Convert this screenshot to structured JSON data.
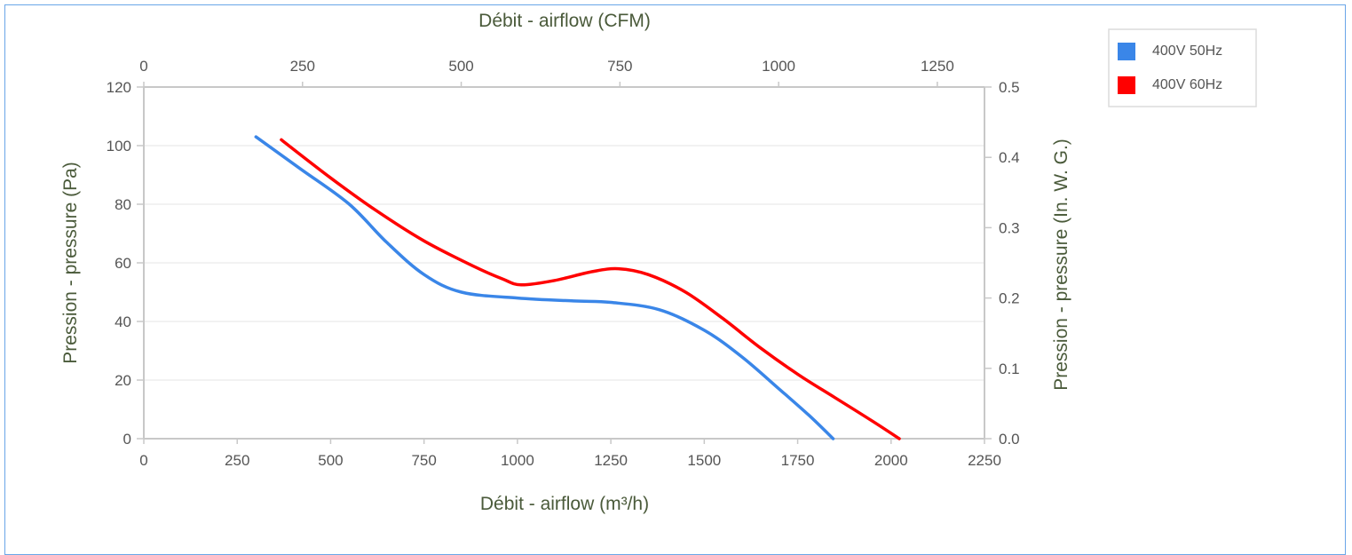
{
  "chart_data": {
    "type": "line",
    "title": "",
    "x_bottom": {
      "label": "Débit - airflow (m³/h)",
      "range": [
        0,
        2250
      ],
      "ticks": [
        0,
        250,
        500,
        750,
        1000,
        1250,
        1500,
        1750,
        2000,
        2250
      ]
    },
    "x_top": {
      "label": "Débit - airflow (CFM)",
      "range": [
        0,
        1324.3
      ],
      "ticks": [
        0,
        250,
        500,
        750,
        1000,
        1250
      ]
    },
    "y_left": {
      "label": "Pression - pressure (Pa)",
      "range": [
        0,
        120
      ],
      "ticks": [
        0,
        20,
        40,
        60,
        80,
        100,
        120
      ]
    },
    "y_right": {
      "label": "Pression - pressure (In. W. G.)",
      "range": [
        0,
        0.5
      ],
      "ticks": [
        "0.0",
        "0.1",
        "0.2",
        "0.3",
        "0.4",
        "0.5"
      ]
    },
    "grid": true,
    "legend_position": "top-right",
    "series": [
      {
        "name": "400V 50Hz",
        "color": "#3a86e8",
        "points": [
          [
            300,
            103
          ],
          [
            420,
            92
          ],
          [
            550,
            80
          ],
          [
            650,
            67
          ],
          [
            750,
            56
          ],
          [
            850,
            50
          ],
          [
            1000,
            48
          ],
          [
            1150,
            47
          ],
          [
            1250,
            46.5
          ],
          [
            1380,
            44
          ],
          [
            1500,
            37
          ],
          [
            1600,
            28
          ],
          [
            1700,
            17
          ],
          [
            1780,
            8
          ],
          [
            1845,
            0
          ]
        ]
      },
      {
        "name": "400V 60Hz",
        "color": "#ff0000",
        "points": [
          [
            368,
            102
          ],
          [
            500,
            89
          ],
          [
            620,
            78
          ],
          [
            750,
            67.5
          ],
          [
            880,
            59
          ],
          [
            960,
            54.5
          ],
          [
            1010,
            52.5
          ],
          [
            1100,
            54
          ],
          [
            1200,
            57
          ],
          [
            1270,
            58
          ],
          [
            1350,
            56
          ],
          [
            1450,
            50
          ],
          [
            1550,
            41
          ],
          [
            1650,
            31
          ],
          [
            1750,
            22
          ],
          [
            1850,
            14
          ],
          [
            1950,
            6
          ],
          [
            2022,
            0
          ]
        ]
      }
    ]
  }
}
